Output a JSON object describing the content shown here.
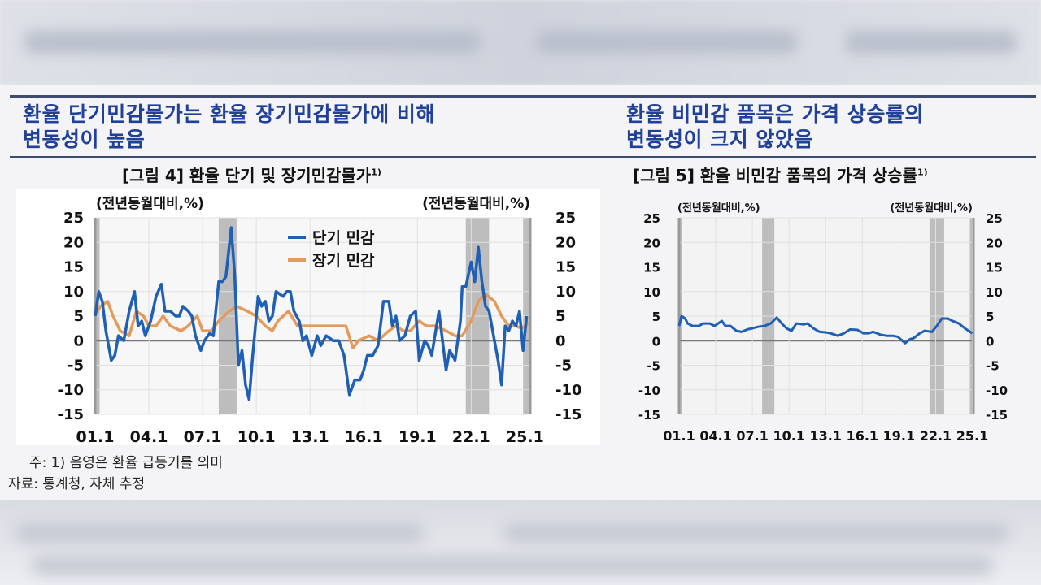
{
  "left_panel": {
    "headline_line1": "환율 단기민감물가는 환율 장기민감물가에 비해",
    "headline_line2": "변동성이 높음",
    "figure_title": "[그림 4] 환율 단기 및 장기민감물가",
    "figure_footnote_mark": "1)"
  },
  "right_panel": {
    "headline_line1": "환율 비민감 품목은 가격 상승률의",
    "headline_line2": "변동성이 크지 않았음",
    "figure_title": "[그림 5] 환율 비민감 품목의 가격 상승률",
    "figure_footnote_mark": "1)"
  },
  "notes": {
    "note": "주: 1) 음영은 환율 급등기를 의미",
    "source": "자료: 통계청, 자체 추정"
  },
  "colors": {
    "blue": "#1f5fb5",
    "orange": "#e39a5a",
    "shade": "#bdbdbd",
    "headline": "#21409a"
  },
  "chart_data": [
    {
      "type": "line",
      "title": "[그림 4] 환율 단기 및 장기민감물가",
      "ylabel_left": "(전년동월대비,%)",
      "ylabel_right": "(전년동월대비,%)",
      "xlim": [
        2001.0,
        2025.3
      ],
      "ylim": [
        -15,
        25
      ],
      "x_ticks": [
        2001,
        2004,
        2007,
        2010,
        2013,
        2016,
        2019,
        2022,
        2025
      ],
      "x_tick_labels": [
        "01.1",
        "04.1",
        "07.1",
        "10.1",
        "13.1",
        "16.1",
        "19.1",
        "22.1",
        "25.1"
      ],
      "y_ticks": [
        25,
        20,
        15,
        10,
        5,
        0,
        -5,
        -10,
        -15
      ],
      "y_tick_labels": [
        "25",
        "20",
        "15",
        "10",
        "5",
        "0",
        "-5",
        "-10",
        "-15"
      ],
      "grid": true,
      "legend": "top-center",
      "shaded_periods": [
        [
          2001.0,
          2001.25
        ],
        [
          2007.9,
          2008.9
        ],
        [
          2021.7,
          2023.0
        ],
        [
          2024.9,
          2025.3
        ]
      ],
      "series": [
        {
          "name": "단기 민감",
          "color": "#1f5fb5",
          "points": [
            [
              2001.0,
              5
            ],
            [
              2001.2,
              10
            ],
            [
              2001.4,
              8
            ],
            [
              2001.6,
              2
            ],
            [
              2001.9,
              -4
            ],
            [
              2002.1,
              -3
            ],
            [
              2002.3,
              1
            ],
            [
              2002.6,
              0
            ],
            [
              2002.9,
              6
            ],
            [
              2003.2,
              10
            ],
            [
              2003.4,
              3
            ],
            [
              2003.6,
              4
            ],
            [
              2003.8,
              1
            ],
            [
              2004.1,
              4
            ],
            [
              2004.4,
              9
            ],
            [
              2004.7,
              11.5
            ],
            [
              2004.9,
              6
            ],
            [
              2005.2,
              6
            ],
            [
              2005.5,
              5
            ],
            [
              2005.7,
              5
            ],
            [
              2005.9,
              7
            ],
            [
              2006.2,
              6
            ],
            [
              2006.4,
              5
            ],
            [
              2006.6,
              1
            ],
            [
              2006.9,
              -2
            ],
            [
              2007.1,
              0
            ],
            [
              2007.4,
              1.5
            ],
            [
              2007.6,
              1
            ],
            [
              2007.9,
              12
            ],
            [
              2008.1,
              12
            ],
            [
              2008.3,
              13
            ],
            [
              2008.6,
              23
            ],
            [
              2008.8,
              13
            ],
            [
              2009.0,
              -5
            ],
            [
              2009.2,
              -2
            ],
            [
              2009.4,
              -9
            ],
            [
              2009.6,
              -12
            ],
            [
              2009.8,
              -3
            ],
            [
              2010.0,
              5
            ],
            [
              2010.1,
              9
            ],
            [
              2010.3,
              7
            ],
            [
              2010.5,
              8
            ],
            [
              2010.7,
              4
            ],
            [
              2010.9,
              5
            ],
            [
              2011.1,
              10
            ],
            [
              2011.5,
              9
            ],
            [
              2011.7,
              10
            ],
            [
              2011.9,
              10
            ],
            [
              2012.1,
              6
            ],
            [
              2012.4,
              4
            ],
            [
              2012.6,
              0
            ],
            [
              2012.8,
              1
            ],
            [
              2013.1,
              -3
            ],
            [
              2013.4,
              1
            ],
            [
              2013.6,
              -1
            ],
            [
              2013.9,
              1
            ],
            [
              2014.3,
              0
            ],
            [
              2014.6,
              0
            ],
            [
              2014.9,
              -3
            ],
            [
              2015.2,
              -11
            ],
            [
              2015.5,
              -8
            ],
            [
              2015.8,
              -8
            ],
            [
              2016.0,
              -6
            ],
            [
              2016.2,
              -3
            ],
            [
              2016.5,
              -3
            ],
            [
              2016.8,
              -1
            ],
            [
              2017.1,
              8
            ],
            [
              2017.4,
              8
            ],
            [
              2017.6,
              3
            ],
            [
              2017.8,
              5
            ],
            [
              2018.0,
              0
            ],
            [
              2018.3,
              1
            ],
            [
              2018.6,
              5
            ],
            [
              2018.9,
              6
            ],
            [
              2019.1,
              -4
            ],
            [
              2019.4,
              0
            ],
            [
              2019.6,
              -1
            ],
            [
              2019.8,
              -3
            ],
            [
              2020.2,
              6
            ],
            [
              2020.4,
              0
            ],
            [
              2020.6,
              -6
            ],
            [
              2020.8,
              -2
            ],
            [
              2021.1,
              -4
            ],
            [
              2021.4,
              4
            ],
            [
              2021.5,
              11
            ],
            [
              2021.7,
              11
            ],
            [
              2022.0,
              16
            ],
            [
              2022.2,
              12
            ],
            [
              2022.4,
              19
            ],
            [
              2022.6,
              12
            ],
            [
              2022.8,
              7
            ],
            [
              2023.0,
              6
            ],
            [
              2023.3,
              0
            ],
            [
              2023.5,
              -4
            ],
            [
              2023.7,
              -9
            ],
            [
              2023.9,
              3
            ],
            [
              2024.1,
              2
            ],
            [
              2024.3,
              4
            ],
            [
              2024.5,
              3
            ],
            [
              2024.7,
              6
            ],
            [
              2024.9,
              -2
            ],
            [
              2025.1,
              5
            ]
          ]
        },
        {
          "name": "장기 민감",
          "color": "#e39a5a",
          "points": [
            [
              2001.0,
              5
            ],
            [
              2001.3,
              7
            ],
            [
              2001.7,
              8
            ],
            [
              2002.0,
              5
            ],
            [
              2002.4,
              2
            ],
            [
              2002.9,
              1
            ],
            [
              2003.3,
              6
            ],
            [
              2003.7,
              5
            ],
            [
              2004.0,
              3
            ],
            [
              2004.4,
              3
            ],
            [
              2004.8,
              5
            ],
            [
              2005.2,
              3
            ],
            [
              2005.8,
              2
            ],
            [
              2006.2,
              3
            ],
            [
              2006.7,
              5
            ],
            [
              2007.0,
              2
            ],
            [
              2007.5,
              2
            ],
            [
              2007.9,
              4
            ],
            [
              2008.5,
              6
            ],
            [
              2008.9,
              7
            ],
            [
              2009.5,
              6
            ],
            [
              2010.0,
              5
            ],
            [
              2010.5,
              3
            ],
            [
              2010.9,
              2
            ],
            [
              2011.2,
              4
            ],
            [
              2011.8,
              6
            ],
            [
              2012.3,
              3
            ],
            [
              2012.8,
              3
            ],
            [
              2013.2,
              3
            ],
            [
              2013.8,
              3
            ],
            [
              2014.5,
              3
            ],
            [
              2015.0,
              3
            ],
            [
              2015.4,
              -1.5
            ],
            [
              2015.7,
              0
            ],
            [
              2016.3,
              1
            ],
            [
              2016.8,
              0
            ],
            [
              2017.4,
              2
            ],
            [
              2017.8,
              3
            ],
            [
              2018.2,
              2
            ],
            [
              2018.6,
              2
            ],
            [
              2019.1,
              4
            ],
            [
              2019.5,
              3
            ],
            [
              2020.0,
              3
            ],
            [
              2020.6,
              2
            ],
            [
              2021.1,
              1
            ],
            [
              2021.5,
              1
            ],
            [
              2022.0,
              4
            ],
            [
              2022.4,
              8
            ],
            [
              2022.8,
              9.5
            ],
            [
              2023.3,
              8
            ],
            [
              2023.7,
              5
            ],
            [
              2024.1,
              3
            ],
            [
              2024.5,
              3
            ],
            [
              2024.8,
              2.5
            ],
            [
              2025.2,
              3.5
            ]
          ]
        }
      ]
    },
    {
      "type": "line",
      "title": "[그림 5] 환율 비민감 품목의 가격 상승률",
      "ylabel_left": "(전년동월대비,%)",
      "ylabel_right": "(전년동월대비,%)",
      "xlim": [
        2001.0,
        2025.1
      ],
      "ylim": [
        -15,
        25
      ],
      "x_ticks": [
        2001,
        2004,
        2007,
        2010,
        2013,
        2016,
        2019,
        2022,
        2025
      ],
      "x_tick_labels": [
        "01.1",
        "04.1",
        "07.1",
        "10.1",
        "13.1",
        "16.1",
        "19.1",
        "22.1",
        "25.1"
      ],
      "y_ticks": [
        25,
        20,
        15,
        10,
        5,
        0,
        -5,
        -10,
        -15
      ],
      "y_tick_labels": [
        "25",
        "20",
        "15",
        "10",
        "5",
        "0",
        "-5",
        "-10",
        "-15"
      ],
      "grid": true,
      "shaded_periods": [
        [
          2001.0,
          2001.25
        ],
        [
          2007.8,
          2008.8
        ],
        [
          2021.5,
          2022.7
        ],
        [
          2024.8,
          2025.1
        ]
      ],
      "series": [
        {
          "color": "#1f5fb5",
          "points": [
            [
              2001.0,
              3
            ],
            [
              2001.2,
              5
            ],
            [
              2001.5,
              4.5
            ],
            [
              2001.7,
              3.5
            ],
            [
              2002.1,
              3
            ],
            [
              2002.6,
              3
            ],
            [
              2003.0,
              3.5
            ],
            [
              2003.5,
              3.5
            ],
            [
              2003.9,
              3
            ],
            [
              2004.5,
              4
            ],
            [
              2004.8,
              3
            ],
            [
              2005.2,
              3
            ],
            [
              2005.7,
              2
            ],
            [
              2006.1,
              1.8
            ],
            [
              2006.6,
              2.3
            ],
            [
              2007.0,
              2.5
            ],
            [
              2007.4,
              2.8
            ],
            [
              2008.0,
              3
            ],
            [
              2008.5,
              3.5
            ],
            [
              2009.0,
              4.7
            ],
            [
              2009.4,
              3.5
            ],
            [
              2009.8,
              2.5
            ],
            [
              2010.2,
              2
            ],
            [
              2010.6,
              3.5
            ],
            [
              2011.2,
              3.3
            ],
            [
              2011.5,
              3.5
            ],
            [
              2012.0,
              2.5
            ],
            [
              2012.5,
              1.8
            ],
            [
              2013.0,
              1.7
            ],
            [
              2013.4,
              1.5
            ],
            [
              2014.0,
              1
            ],
            [
              2014.5,
              1.5
            ],
            [
              2015.0,
              2.3
            ],
            [
              2015.6,
              2.2
            ],
            [
              2016.1,
              1.5
            ],
            [
              2016.5,
              1.5
            ],
            [
              2016.9,
              1.8
            ],
            [
              2017.5,
              1.2
            ],
            [
              2018.0,
              1
            ],
            [
              2018.5,
              1
            ],
            [
              2018.9,
              0.8
            ],
            [
              2019.5,
              -0.5
            ],
            [
              2019.9,
              0.3
            ],
            [
              2020.2,
              0.5
            ],
            [
              2020.7,
              1.5
            ],
            [
              2021.1,
              2
            ],
            [
              2021.7,
              1.8
            ],
            [
              2022.1,
              3
            ],
            [
              2022.5,
              4.5
            ],
            [
              2023.0,
              4.5
            ],
            [
              2023.4,
              4
            ],
            [
              2023.9,
              3.5
            ],
            [
              2024.4,
              2.5
            ],
            [
              2025.0,
              1.5
            ]
          ]
        }
      ]
    }
  ]
}
